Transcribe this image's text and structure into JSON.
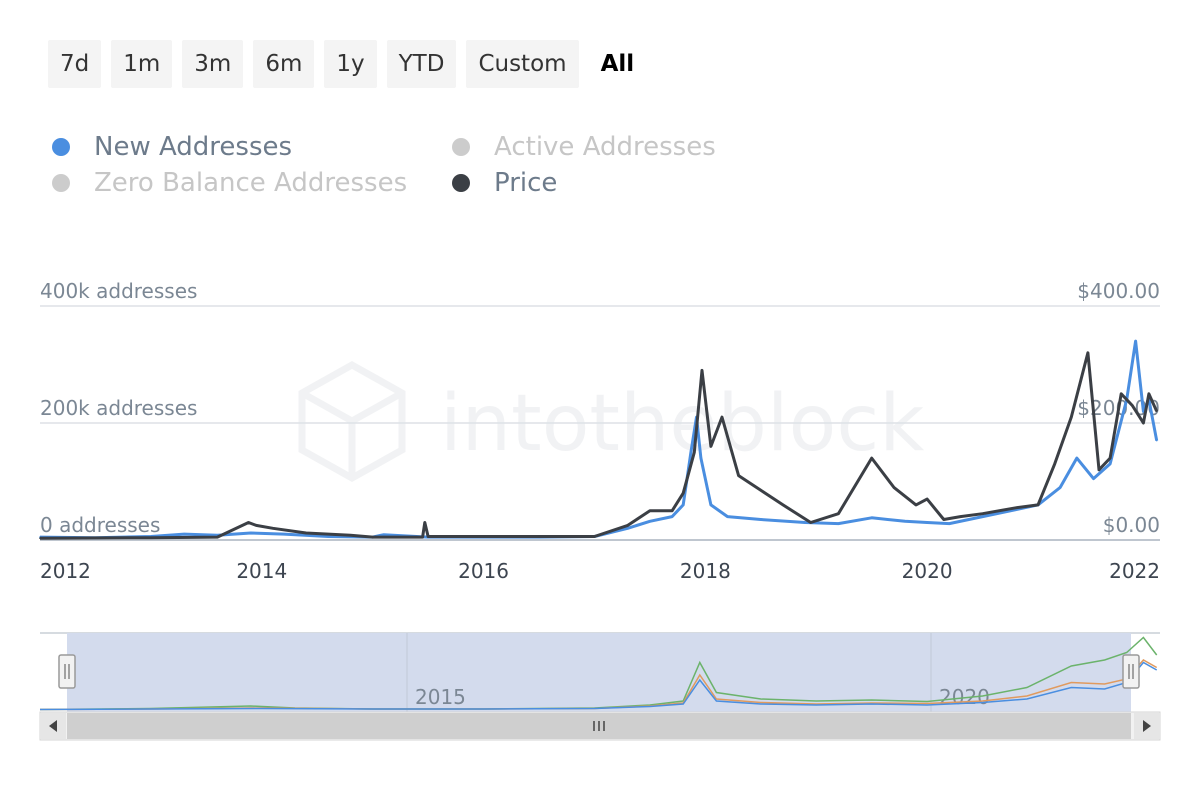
{
  "range_buttons": [
    "7d",
    "1m",
    "3m",
    "6m",
    "1y",
    "YTD",
    "Custom",
    "All"
  ],
  "active_range": "All",
  "legend": [
    {
      "label": "New Addresses",
      "color": "#4a8ee0",
      "visible": true
    },
    {
      "label": "Active Addresses",
      "color": "#cccccc",
      "visible": false
    },
    {
      "label": "Zero Balance Addresses",
      "color": "#cccccc",
      "visible": false
    },
    {
      "label": "Price",
      "color": "#3b3f45",
      "visible": true
    }
  ],
  "watermark": "intotheblock",
  "chart_data": {
    "type": "line",
    "x_ticks": [
      "2012",
      "2014",
      "2016",
      "2018",
      "2020",
      "2022"
    ],
    "xlim": [
      2012,
      2022.1
    ],
    "y_left": {
      "ticks": [
        "0 addresses",
        "200k addresses",
        "400k addresses"
      ],
      "range": [
        0,
        400000
      ]
    },
    "y_right": {
      "ticks": [
        "$0.00",
        "$200.00",
        "$400.00"
      ],
      "range": [
        0,
        400
      ]
    },
    "grid": true,
    "series": [
      {
        "name": "New Addresses",
        "color": "#4a8ee0",
        "axis": "left",
        "x": [
          2012.0,
          2012.5,
          2013.0,
          2013.3,
          2013.6,
          2013.9,
          2014.2,
          2014.6,
          2015.0,
          2015.1,
          2015.5,
          2016.0,
          2016.5,
          2017.0,
          2017.3,
          2017.5,
          2017.7,
          2017.8,
          2017.87,
          2017.92,
          2017.96,
          2018.05,
          2018.2,
          2018.5,
          2018.9,
          2019.2,
          2019.5,
          2019.8,
          2020.0,
          2020.2,
          2020.5,
          2020.8,
          2021.0,
          2021.2,
          2021.35,
          2021.5,
          2021.65,
          2021.8,
          2021.88,
          2021.95,
          2022.0,
          2022.07
        ],
        "values": [
          5000,
          4000,
          6000,
          10000,
          8000,
          12000,
          10000,
          6000,
          5000,
          9000,
          5000,
          5000,
          5000,
          6000,
          20000,
          32000,
          40000,
          60000,
          150000,
          210000,
          140000,
          60000,
          40000,
          35000,
          30000,
          28000,
          38000,
          32000,
          30000,
          28000,
          40000,
          52000,
          60000,
          90000,
          140000,
          105000,
          130000,
          240000,
          340000,
          220000,
          240000,
          170000
        ]
      },
      {
        "name": "Price",
        "color": "#3b3f45",
        "axis": "right",
        "x": [
          2012.0,
          2013.0,
          2013.6,
          2013.88,
          2013.95,
          2014.1,
          2014.4,
          2014.8,
          2015.0,
          2015.45,
          2015.47,
          2015.5,
          2016.0,
          2016.5,
          2017.0,
          2017.3,
          2017.5,
          2017.7,
          2017.8,
          2017.9,
          2017.97,
          2018.05,
          2018.15,
          2018.3,
          2018.5,
          2018.7,
          2018.95,
          2019.2,
          2019.5,
          2019.7,
          2019.9,
          2020.0,
          2020.15,
          2020.3,
          2020.5,
          2020.8,
          2021.0,
          2021.15,
          2021.3,
          2021.45,
          2021.55,
          2021.65,
          2021.75,
          2021.85,
          2021.95,
          2022.0,
          2022.07
        ],
        "values": [
          3,
          4,
          5,
          30,
          25,
          20,
          12,
          8,
          5,
          5,
          30,
          6,
          6,
          6,
          6,
          25,
          50,
          50,
          80,
          150,
          290,
          160,
          210,
          110,
          85,
          60,
          30,
          45,
          140,
          90,
          60,
          70,
          35,
          40,
          45,
          55,
          60,
          130,
          210,
          320,
          120,
          140,
          250,
          230,
          200,
          250,
          220
        ]
      }
    ]
  },
  "navigator": {
    "labels": [
      "2015",
      "2020"
    ],
    "series": [
      {
        "name": "Active Addresses",
        "color": "#6bb36b",
        "x": [
          2012.0,
          2013.0,
          2013.9,
          2014.3,
          2015.0,
          2016.0,
          2017.0,
          2017.5,
          2017.8,
          2017.95,
          2018.1,
          2018.5,
          2019.0,
          2019.5,
          2020.0,
          2020.5,
          2020.9,
          2021.3,
          2021.6,
          2021.8,
          2021.95,
          2022.07
        ],
        "values": [
          1,
          3,
          8,
          4,
          2,
          2,
          4,
          10,
          18,
          95,
          35,
          22,
          18,
          20,
          17,
          28,
          45,
          88,
          100,
          115,
          145,
          110
        ]
      },
      {
        "name": "Zero Balance Addresses",
        "color": "#e09a5e",
        "x": [
          2012.0,
          2013.0,
          2014.0,
          2015.0,
          2016.0,
          2017.0,
          2017.5,
          2017.8,
          2017.95,
          2018.1,
          2018.5,
          2019.0,
          2019.5,
          2020.0,
          2020.5,
          2020.9,
          2021.3,
          2021.6,
          2021.8,
          2021.95,
          2022.07
        ],
        "values": [
          1,
          2,
          4,
          2,
          2,
          3,
          8,
          14,
          70,
          22,
          15,
          12,
          14,
          13,
          18,
          28,
          55,
          52,
          62,
          100,
          85
        ]
      },
      {
        "name": "New Addresses",
        "color": "#4a8ee0",
        "x": [
          2012.0,
          2013.0,
          2014.0,
          2015.0,
          2016.0,
          2017.0,
          2017.5,
          2017.8,
          2017.95,
          2018.1,
          2018.5,
          2019.0,
          2019.5,
          2020.0,
          2020.5,
          2020.9,
          2021.3,
          2021.6,
          2021.8,
          2021.95,
          2022.07
        ],
        "values": [
          1,
          2,
          3,
          2,
          2,
          3,
          7,
          12,
          60,
          18,
          12,
          10,
          12,
          10,
          15,
          22,
          45,
          42,
          55,
          95,
          80
        ]
      }
    ]
  }
}
